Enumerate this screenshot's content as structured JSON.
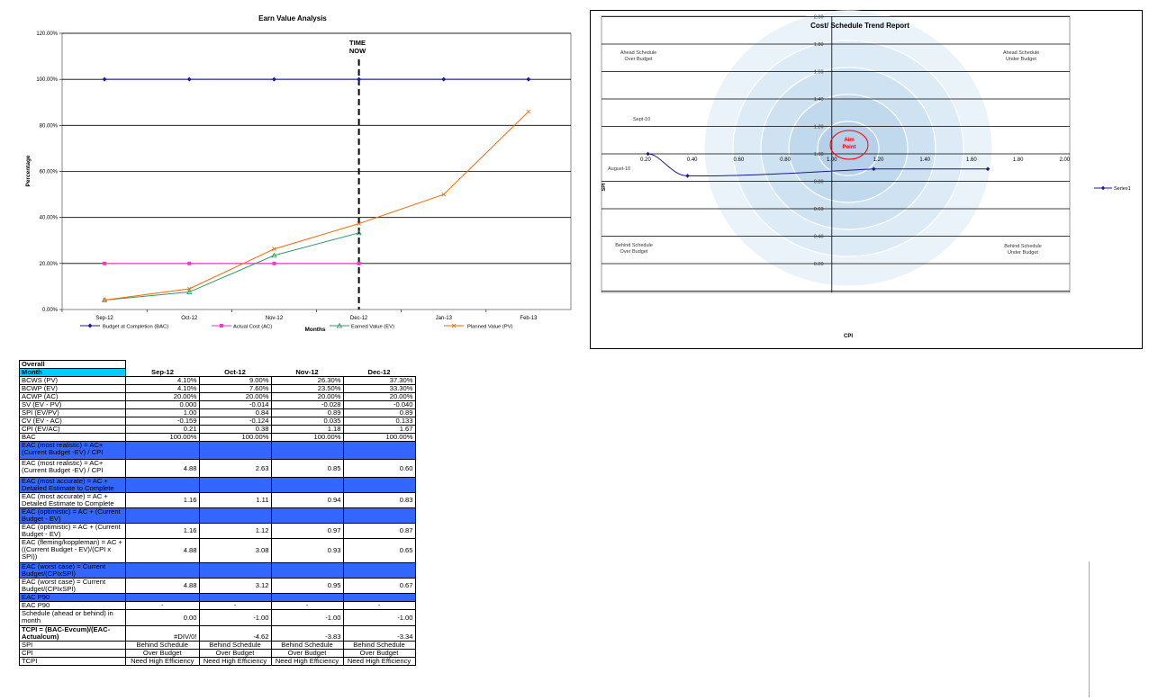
{
  "ev_chart": {
    "title": "Earn Value Analysis",
    "ylabel": "Percentage",
    "xlabel": "Months",
    "time_now_line1": "TIME",
    "time_now_line2": "NOW",
    "yticks": [
      "0.00%",
      "20.00%",
      "40.00%",
      "60.00%",
      "80.00%",
      "100.00%",
      "120.00%"
    ],
    "legend": [
      "Budget at Completion (BAC)",
      "Actual Cost (AC)",
      "Earned Value (EV)",
      "Planned Value (PV)"
    ],
    "colors": {
      "bac": "#1a1aa6",
      "ac": "#ff33cc",
      "ev": "#339966",
      "pv": "#ff6600"
    }
  },
  "trend_chart": {
    "title": "Cost/ Schedule Trend Report",
    "xlabel": "CPI",
    "ylabel": "SPI",
    "xticks": [
      "0.20",
      "0.40",
      "0.60",
      "0.80",
      "1.00",
      "1.20",
      "1.40",
      "1.60",
      "1.80",
      "2.00"
    ],
    "yticks": [
      "0.20",
      "0.40",
      "0.60",
      "0.80",
      "1.00",
      "1.20",
      "1.40",
      "1.60",
      "1.80",
      "2.00"
    ],
    "quadrant_labels": {
      "top_left": [
        "Ahead Schedule",
        "Over Budget"
      ],
      "top_right": [
        "Ahead Schedule",
        "Under Budget"
      ],
      "bottom_left": [
        "Behind Schedule",
        "Over Budget"
      ],
      "bottom_right": [
        "Behind Schedule",
        "Under Budget"
      ]
    },
    "point_label_sept": "Sept-10",
    "point_label_aug": "August-10",
    "aim_line1": "Aim",
    "aim_line2": "Point",
    "legend": "Series1",
    "colors": {
      "series": "#1a1a8c",
      "aim": "#ff0000",
      "target": "#c5dcec"
    }
  },
  "chart_data": [
    {
      "type": "line",
      "title": "Earn Value Analysis",
      "xlabel": "Months",
      "ylabel": "Percentage",
      "categories": [
        "Sep-12",
        "Oct-12",
        "Nov-12",
        "Dec-12",
        "Jan-13",
        "Feb-13"
      ],
      "ylim": [
        0,
        120
      ],
      "grid": true,
      "legend_position": "bottom",
      "series": [
        {
          "name": "Budget at Completion (BAC)",
          "values": [
            100,
            100,
            100,
            100,
            100,
            100
          ]
        },
        {
          "name": "Actual Cost (AC)",
          "values": [
            20,
            20,
            20,
            20,
            null,
            null
          ]
        },
        {
          "name": "Earned Value (EV)",
          "values": [
            4.1,
            7.6,
            23.5,
            33.3,
            null,
            null
          ]
        },
        {
          "name": "Planned Value (PV)",
          "values": [
            4.1,
            9.0,
            26.3,
            37.3,
            50,
            86
          ]
        }
      ]
    },
    {
      "type": "scatter",
      "title": "Cost/ Schedule Trend Report",
      "xlabel": "CPI",
      "ylabel": "SPI",
      "xlim": [
        0,
        2.0
      ],
      "ylim": [
        -0.02,
        2.0
      ],
      "grid": true,
      "legend_position": "right",
      "series": [
        {
          "name": "Series1",
          "x": [
            0.21,
            0.38,
            1.18,
            1.67
          ],
          "y": [
            1.0,
            0.84,
            0.89,
            0.89
          ]
        }
      ]
    }
  ],
  "table": {
    "overall": "Overall",
    "month_label": "Month",
    "months": [
      "Sep-12",
      "Oct-12",
      "Nov-12",
      "Dec-12"
    ],
    "rows": [
      {
        "label": "BCWS (PV)",
        "values": [
          "4.10%",
          "9.00%",
          "26.30%",
          "37.30%"
        ],
        "blue": false
      },
      {
        "label": "BCWP (EV)",
        "values": [
          "4.10%",
          "7.60%",
          "23.50%",
          "33.30%"
        ],
        "blue": false
      },
      {
        "label": "ACWP (AC)",
        "values": [
          "20.00%",
          "20.00%",
          "20.00%",
          "20.00%"
        ],
        "blue": false
      },
      {
        "label": "SV (EV - PV)",
        "values": [
          "0.000",
          "-0.014",
          "-0.028",
          "-0.040"
        ],
        "blue": false
      },
      {
        "label": "SPI (EV/PV)",
        "values": [
          "1.00",
          "0.84",
          "0.89",
          "0.89"
        ],
        "blue": false
      },
      {
        "label": "CV (EV - AC)",
        "values": [
          "-0.159",
          "-0.124",
          "0.035",
          "0.133"
        ],
        "blue": false
      },
      {
        "label": "CPI (EV/AC)",
        "values": [
          "0.21",
          "0.38",
          "1.18",
          "1.67"
        ],
        "blue": false
      },
      {
        "label": "BAC",
        "values": [
          "100.00%",
          "100.00%",
          "100.00%",
          "100.00%"
        ],
        "blue": false
      },
      {
        "label": "EAC (most realistic) = AC+ (Current Budget -EV) / CPI",
        "values": [
          "",
          "",
          "",
          ""
        ],
        "blue": true
      },
      {
        "label": "EAC (most realistic) = AC+ (Current Budget -EV) / CPI",
        "values": [
          "4.88",
          "2.63",
          "0.85",
          "0.60"
        ],
        "blue": false
      },
      {
        "label": "EAC (most accurate) = AC + Detailed Estimate to Complete",
        "values": [
          "",
          "",
          "",
          ""
        ],
        "blue": true
      },
      {
        "label": "EAC (most accurate) = AC + Detailed Estimate to Complete",
        "values": [
          "1.16",
          "1.11",
          "0.94",
          "0.83"
        ],
        "blue": false
      },
      {
        "label": "EAC (optimistic) = AC + (Current Budget - EV)",
        "values": [
          "",
          "",
          "",
          ""
        ],
        "blue": true
      },
      {
        "label": "EAC (optimistic) = AC + (Current Budget - EV)",
        "values": [
          "1.16",
          "1.12",
          "0.97",
          "0.87"
        ],
        "blue": false
      },
      {
        "label": "EAC (fleming/koppleman) = AC + ((Current Budget - EV)/(CPI x SPI))",
        "values": [
          "4.88",
          "3.08",
          "0.93",
          "0.65"
        ],
        "blue": false
      },
      {
        "label": "EAC (worst case) = Current Budget/(CPIxSPI)",
        "values": [
          "",
          "",
          "",
          ""
        ],
        "blue": true
      },
      {
        "label": "EAC (worst case) = Current Budget/(CPIxSPI)",
        "values": [
          "4.88",
          "3.12",
          "0.95",
          "0.67"
        ],
        "blue": false
      },
      {
        "label": "EAC P90",
        "values": [
          "",
          "",
          "",
          ""
        ],
        "blue": true
      },
      {
        "label": "EAC P90",
        "values": [
          "-",
          "-",
          "-",
          "-"
        ],
        "blue": false,
        "center": true
      },
      {
        "label": "Schedule (ahead or behind) in month",
        "values": [
          "0.00",
          "-1.00",
          "-1.00",
          "-1.00"
        ],
        "blue": false
      },
      {
        "label": "TCPI = (BAC-Evcum)/(EAC-Actualcum)",
        "values": [
          "#DIV/0!",
          "-4.62",
          "-3.83",
          "-3.34"
        ],
        "blue": false,
        "bold": true,
        "bottom": true
      },
      {
        "label": "SPI",
        "values": [
          "Behind Schedule",
          "Behind Schedule",
          "Behind Schedule",
          "Behind Schedule"
        ],
        "blue": false,
        "center": true
      },
      {
        "label": "CPI",
        "values": [
          "Over Budget",
          "Over Budget",
          "Over Budget",
          "Over Budget"
        ],
        "blue": false,
        "center": true
      },
      {
        "label": "TCPI",
        "values": [
          "Need High Efficiency",
          "Need High Efficiency",
          "Need High Efficiency",
          "Need High Efficiency"
        ],
        "blue": false,
        "center": true
      }
    ]
  }
}
